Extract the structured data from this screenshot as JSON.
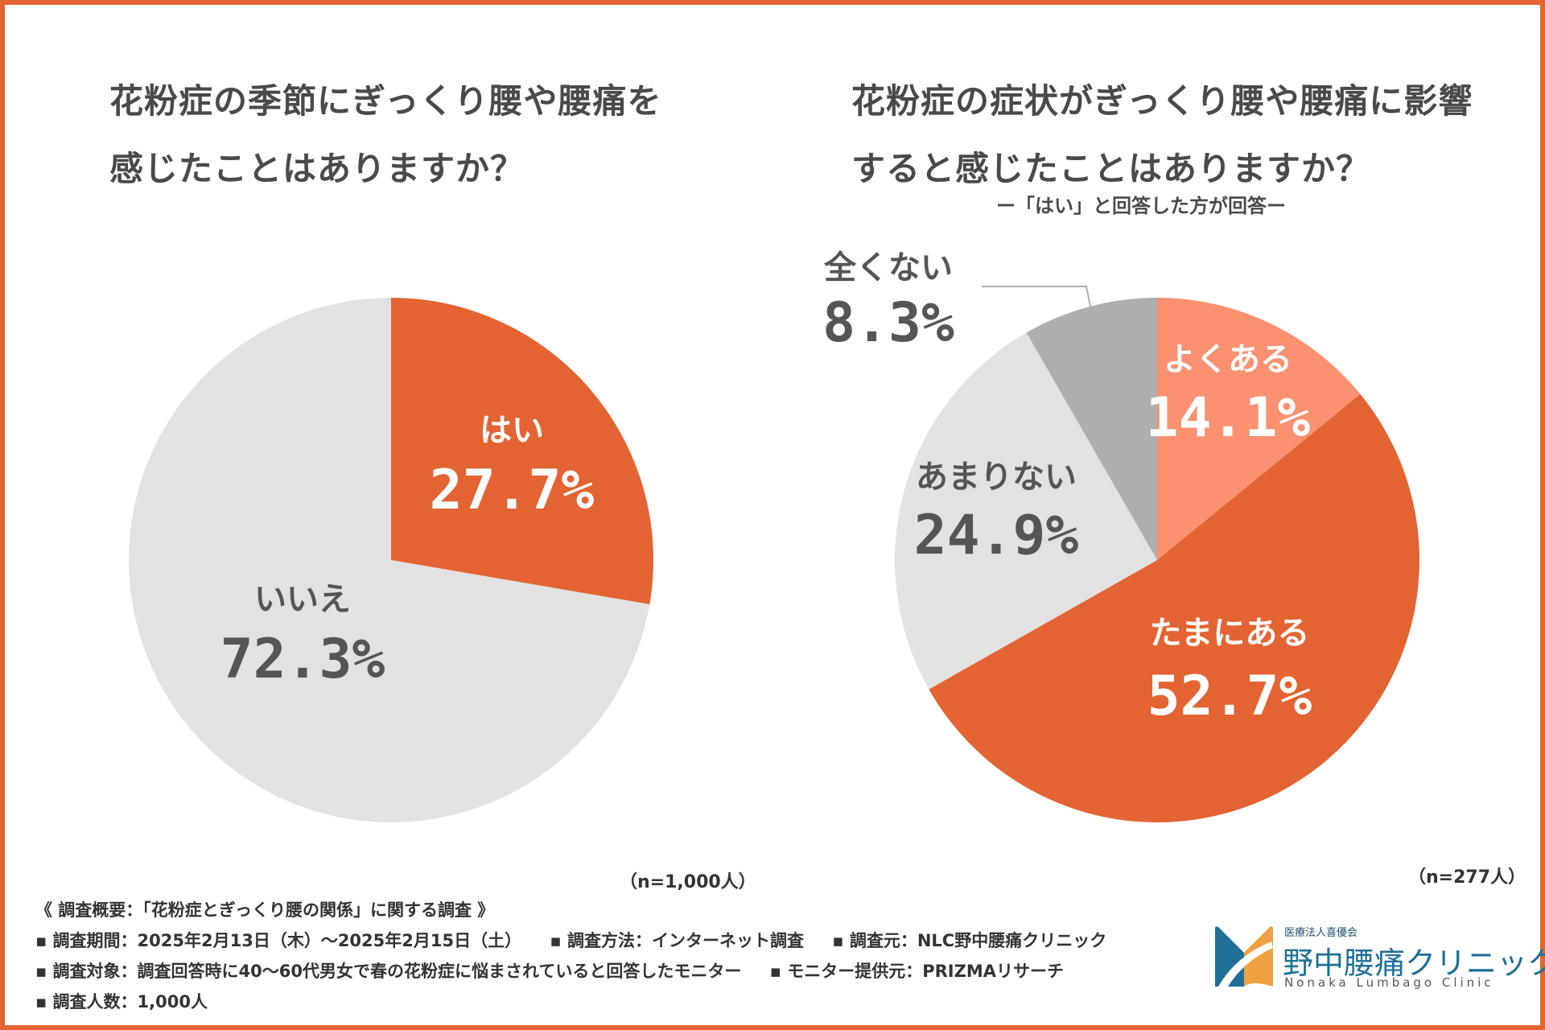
{
  "left_chart": {
    "title_line1": "花粉症の季節にぎっくり腰や腰痛を",
    "title_line2": "感じたことはありますか？",
    "n_label": "（n=1,000人）"
  },
  "right_chart": {
    "title_line1": "花粉症の症状がぎっくり腰や腰痛に影響",
    "title_line2": "すると感じたことはありますか？",
    "subtitle": "ー「はい」と回答した方が回答ー",
    "n_label": "（n=277人）"
  },
  "chart_data": [
    {
      "type": "pie",
      "title": "花粉症の季節にぎっくり腰や腰痛を感じたことはありますか？",
      "slices": [
        {
          "label": "はい",
          "value": 27.7,
          "display": "27.7%",
          "color": "#e36432",
          "text_color": "#ffffff"
        },
        {
          "label": "いいえ",
          "value": 72.3,
          "display": "72.3%",
          "color": "#e2e2e2",
          "text_color": "#555555"
        }
      ]
    },
    {
      "type": "pie",
      "title": "花粉症の症状がぎっくり腰や腰痛に影響すると感じたことはありますか？",
      "slices": [
        {
          "label": "よくある",
          "value": 14.1,
          "display": "14.1%",
          "color": "#fb9170",
          "text_color": "#ffffff"
        },
        {
          "label": "たまにある",
          "value": 52.7,
          "display": "52.7%",
          "color": "#e36432",
          "text_color": "#ffffff"
        },
        {
          "label": "あまりない",
          "value": 24.9,
          "display": "24.9%",
          "color": "#e2e2e2",
          "text_color": "#555555"
        },
        {
          "label": "全くない",
          "value": 8.3,
          "display": "8.3%",
          "color": "#aeaeae",
          "text_color": "#555555",
          "callout": true
        }
      ]
    }
  ],
  "survey": {
    "heading": "《 調査概要：「花粉症とぎっくり腰の関係」に関する調査 》",
    "period": "▪ 調査期間：2025年2月13日（木）〜2025年2月15日（土）",
    "method": "▪ 調査方法：インターネット調査",
    "source": "▪ 調査元：NLC野中腰痛クリニック",
    "target": "▪ 調査対象：調査回答時に40〜60代男女で春の花粉症に悩まされていると回答したモニター",
    "provider": "▪ モニター提供元：PRIZMAリサーチ",
    "count": "▪ 調査人数：1,000人"
  },
  "logo": {
    "org": "医療法人喜優会",
    "name": "野中腰痛クリニック",
    "en": "Nonaka Lumbago Clinic"
  },
  "colors": {
    "frame": "#e36432",
    "logo_blue": "#1f6f96",
    "logo_orange": "#f0a040"
  }
}
